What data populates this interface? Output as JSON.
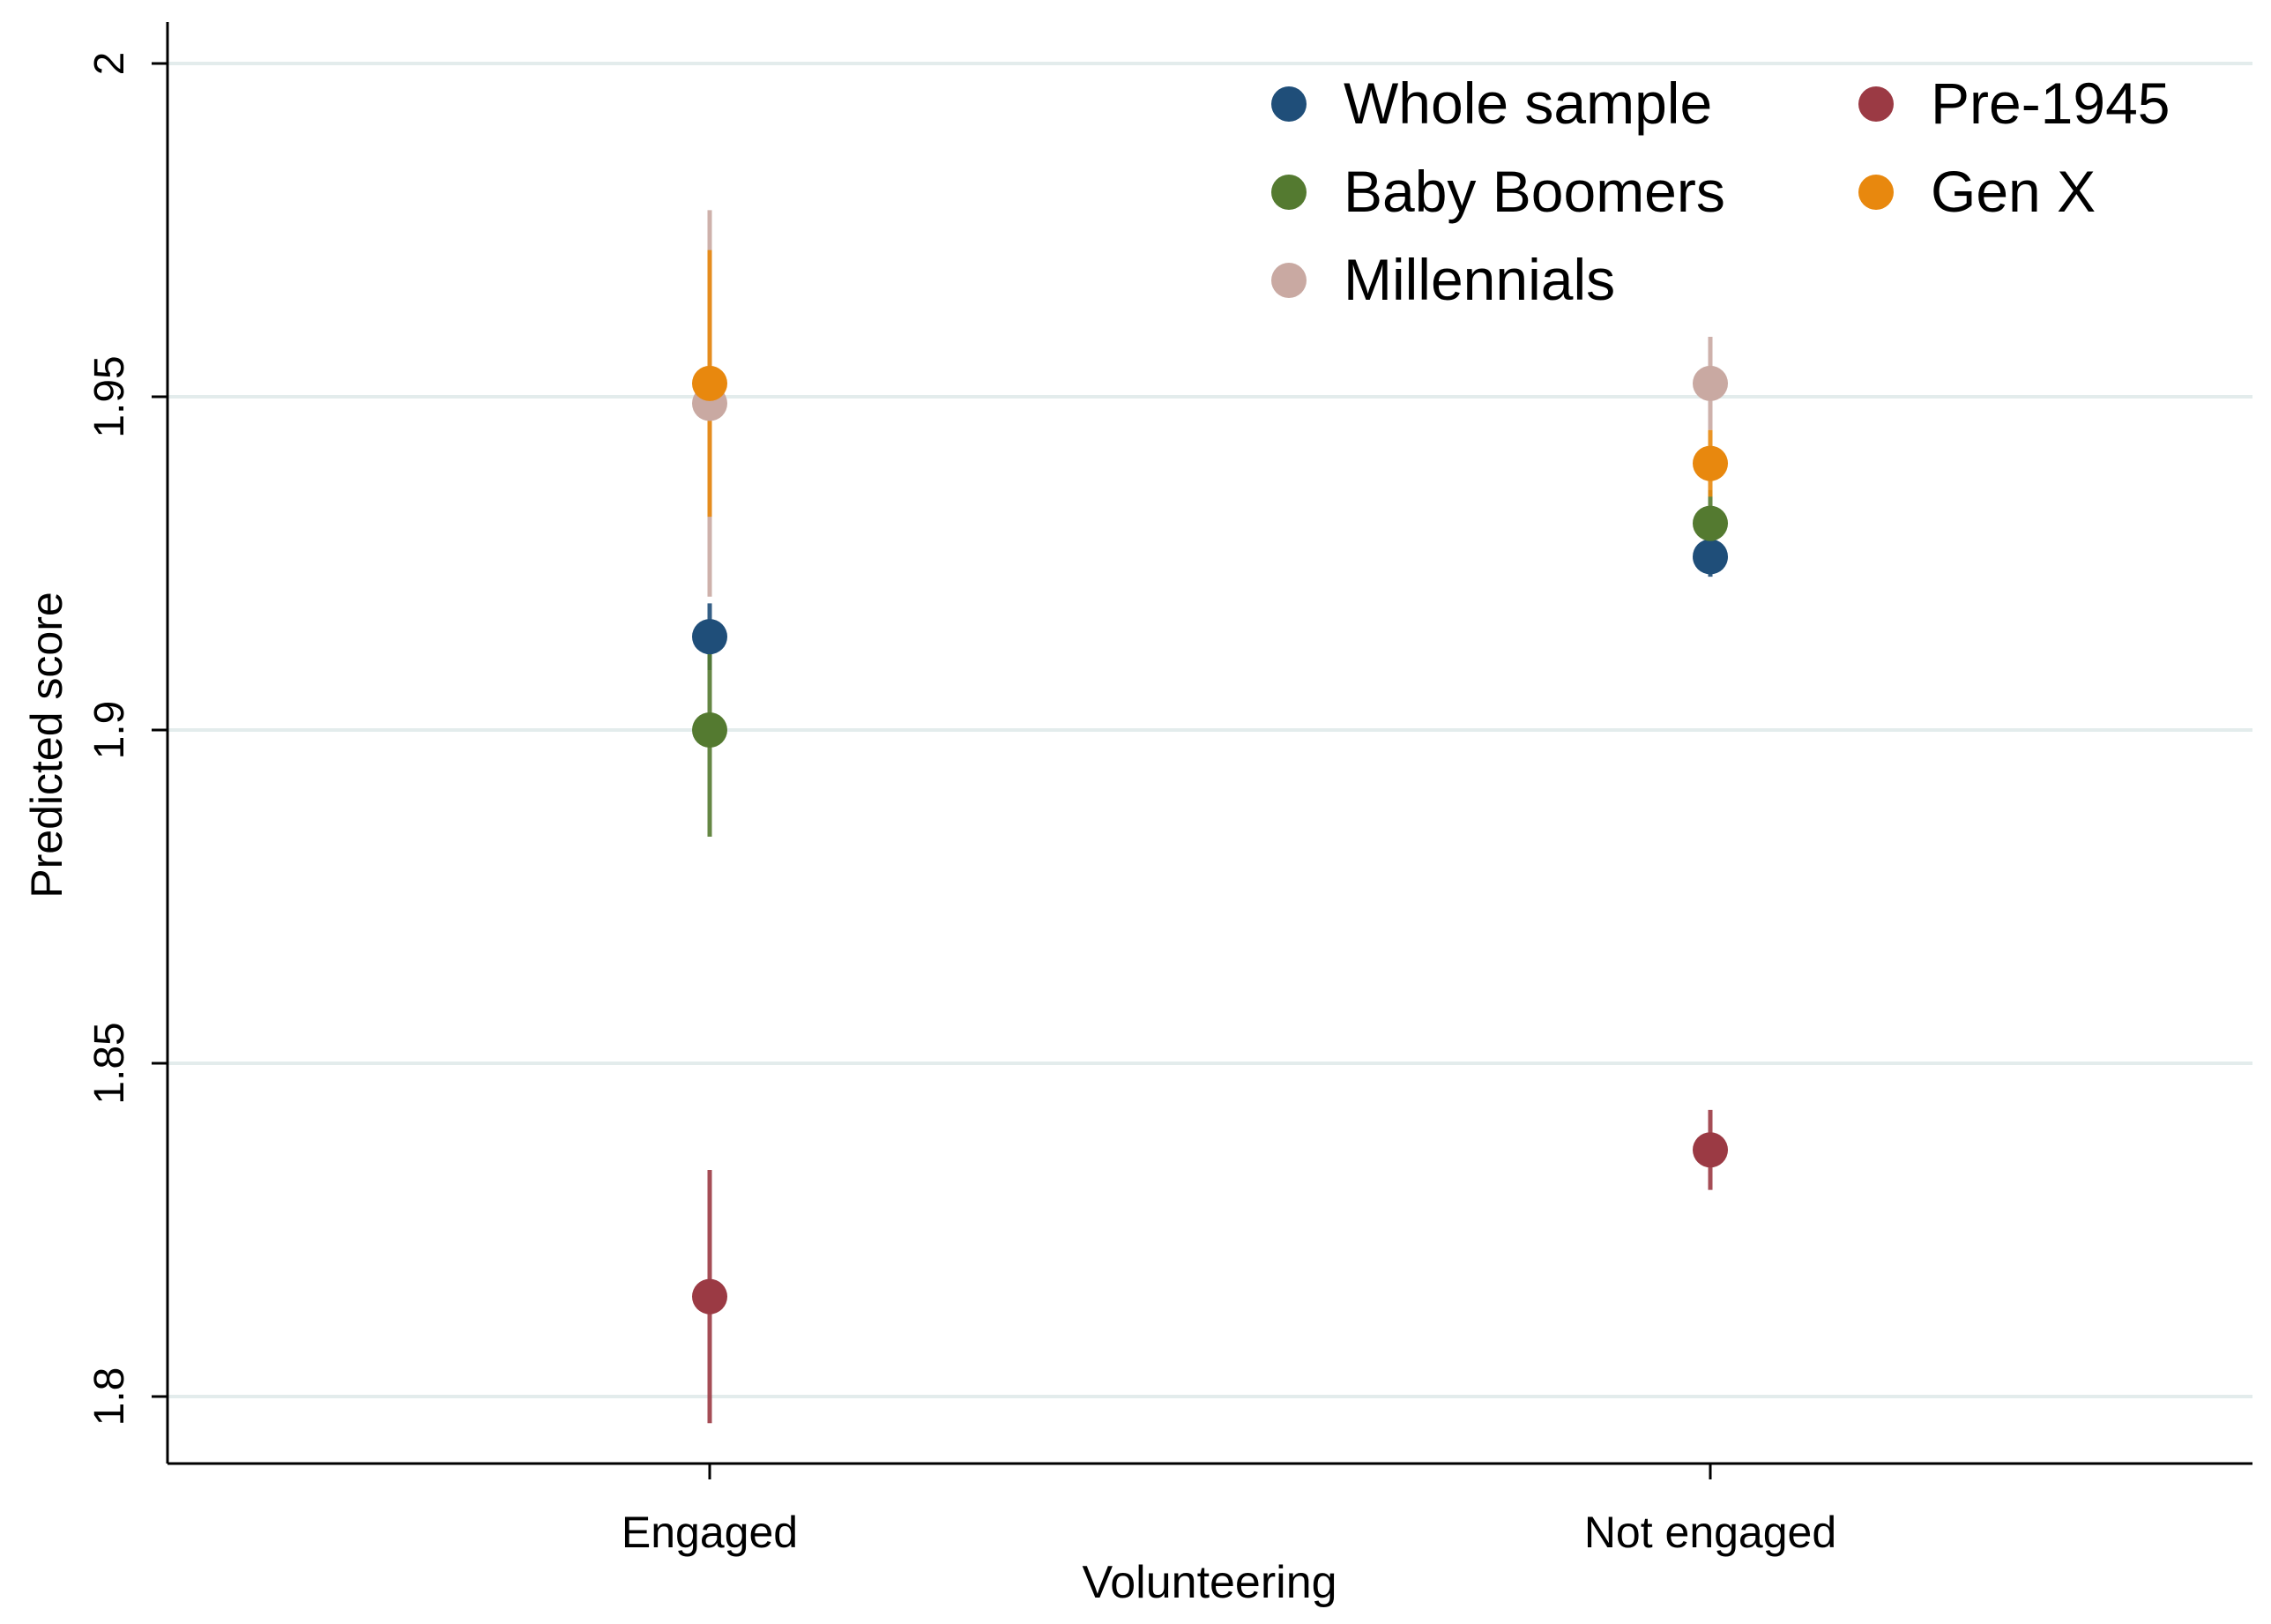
{
  "chart_data": {
    "type": "scatter",
    "title": "",
    "xlabel": "Volunteering",
    "ylabel": "Predicted score",
    "categories": [
      "Engaged",
      "Not engaged"
    ],
    "ylim": [
      1.79,
      2.0
    ],
    "yticks": [
      1.8,
      1.85,
      1.9,
      1.95,
      2.0
    ],
    "ytick_labels": [
      "1.8",
      "1.85",
      "1.9",
      "1.95",
      "2"
    ],
    "grid": true,
    "legend_position": "top-right",
    "legend_columns": 2,
    "series": [
      {
        "name": "Whole sample",
        "color": "#1f4e79",
        "values": [
          1.914,
          1.926
        ],
        "ci_low": [
          1.909,
          1.923
        ],
        "ci_high": [
          1.919,
          1.929
        ]
      },
      {
        "name": "Pre-1945",
        "color": "#9b3a44",
        "values": [
          1.815,
          1.837
        ],
        "ci_low": [
          1.796,
          1.831
        ],
        "ci_high": [
          1.834,
          1.843
        ]
      },
      {
        "name": "Baby Boomers",
        "color": "#547a30",
        "values": [
          1.9,
          1.931
        ],
        "ci_low": [
          1.884,
          1.927
        ],
        "ci_high": [
          1.916,
          1.936
        ]
      },
      {
        "name": "Gen X",
        "color": "#e8880e",
        "values": [
          1.952,
          1.94
        ],
        "ci_low": [
          1.932,
          1.935
        ],
        "ci_high": [
          1.972,
          1.945
        ]
      },
      {
        "name": "Millennials",
        "color": "#c9a9a2",
        "values": [
          1.949,
          1.952
        ],
        "ci_low": [
          1.92,
          1.945
        ],
        "ci_high": [
          1.978,
          1.959
        ]
      }
    ]
  },
  "colors": {
    "background": "#ffffff",
    "axis": "#000000",
    "gridline": "#e3ecec"
  }
}
